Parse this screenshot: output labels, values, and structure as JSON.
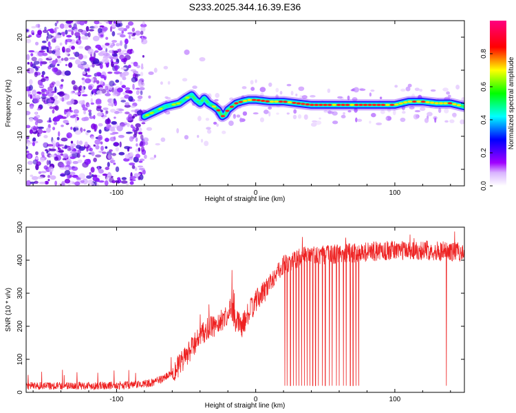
{
  "title": "S233.2025.344.16.39.E36",
  "chart_data": [
    {
      "type": "heatmap",
      "name": "spectrogram",
      "xlabel": "Height of straight line (km)",
      "ylabel": "Frequency (Hz)",
      "xlim": [
        -165,
        150
      ],
      "ylim": [
        -25,
        25
      ],
      "xticks": [
        -100,
        0,
        100
      ],
      "xtick_labels": [
        "-100",
        "0",
        "100"
      ],
      "yticks": [
        -20,
        -10,
        0,
        10,
        20
      ],
      "ytick_labels": [
        "-20",
        "-10",
        "0",
        "10",
        "20"
      ],
      "colorbar": {
        "label": "Normalized spectral amplitude",
        "range": [
          0,
          1
        ],
        "ticks": [
          0,
          0.2,
          0.4,
          0.6,
          0.8
        ],
        "tick_labels": [
          "0.0",
          "0.2",
          "0.4",
          "0.6",
          "0.8"
        ],
        "colors": [
          "#ffffff",
          "#a000ff",
          "#0000ff",
          "#00ffff",
          "#00ff00",
          "#ffff00",
          "#ff0000",
          "#ff0080"
        ]
      },
      "signal_track": {
        "description_x": [
          -80,
          -75,
          -70,
          -65,
          -60,
          -55,
          -50,
          -46,
          -43,
          -40,
          -37,
          -34,
          -30,
          -27,
          -24,
          -22,
          -20,
          -17,
          -14,
          -10,
          -5,
          0,
          10,
          20,
          30,
          40,
          50,
          60,
          70,
          80,
          90,
          100,
          110,
          120,
          130,
          140,
          150
        ],
        "description_y": [
          -4,
          -3,
          -2,
          -1,
          -0.5,
          0,
          1.5,
          2.5,
          1,
          0,
          1.5,
          0,
          -1,
          -2,
          -4,
          -3.5,
          -2,
          -1,
          0,
          0.5,
          1,
          1,
          0.5,
          0.5,
          0,
          -0.5,
          -0.5,
          -0.5,
          -0.5,
          -0.5,
          -0.5,
          -0.5,
          0.5,
          0.5,
          0,
          0,
          -1
        ]
      },
      "noise_region_x": [
        -165,
        -80
      ],
      "noise_sparse_region_x": [
        -80,
        150
      ]
    },
    {
      "type": "line",
      "name": "snr",
      "xlabel": "Height of straight line (km)",
      "ylabel": "SNR (10 * v/v)",
      "xlim": [
        -165,
        150
      ],
      "ylim": [
        0,
        500
      ],
      "xticks": [
        -100,
        0,
        100
      ],
      "xtick_labels": [
        "-100",
        "0",
        "100"
      ],
      "yticks": [
        0,
        100,
        200,
        300,
        400,
        500
      ],
      "ytick_labels": [
        "0",
        "100",
        "200",
        "300",
        "400",
        "500"
      ],
      "color": "#ee2222",
      "trend_x": [
        -165,
        -120,
        -90,
        -75,
        -65,
        -55,
        -48,
        -42,
        -35,
        -30,
        -25,
        -20,
        -18,
        -15,
        -10,
        -5,
        0,
        5,
        10,
        15,
        20,
        30,
        40,
        60,
        80,
        100,
        120,
        150
      ],
      "trend_y": [
        20,
        20,
        22,
        28,
        45,
        80,
        120,
        160,
        190,
        200,
        215,
        240,
        255,
        220,
        200,
        240,
        275,
        300,
        330,
        360,
        385,
        405,
        415,
        420,
        425,
        430,
        430,
        425
      ],
      "dropouts_x": [
        21,
        22.5,
        25,
        27,
        29,
        31,
        33,
        35,
        37,
        39,
        41,
        43,
        45,
        48,
        50,
        53,
        55,
        58,
        60,
        63,
        65,
        68,
        70,
        72,
        74,
        137
      ]
    }
  ]
}
